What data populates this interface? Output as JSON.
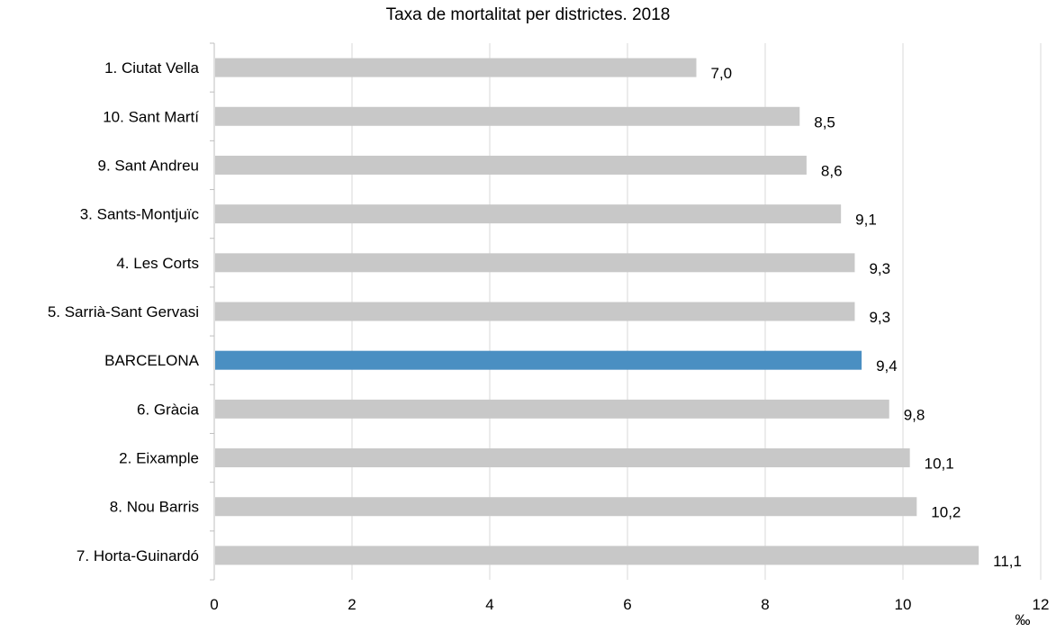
{
  "chart_data": {
    "type": "bar",
    "orientation": "horizontal",
    "title": "Taxa de mortalitat per districtes. 2018",
    "xlabel": "‰",
    "ylabel": "",
    "xlim": [
      0,
      12
    ],
    "x_ticks": [
      "0",
      "2",
      "4",
      "6",
      "8",
      "10",
      "12"
    ],
    "grid": "vertical",
    "legend": "none",
    "categories": [
      "1. Ciutat Vella",
      "10. Sant Martí",
      "9. Sant Andreu",
      "3. Sants-Montjuïc",
      "4. Les Corts",
      "5. Sarrià-Sant Gervasi",
      "BARCELONA",
      "6. Gràcia",
      "2. Eixample",
      "8. Nou Barris",
      "7. Horta-Guinardó"
    ],
    "values": [
      7.0,
      8.5,
      8.6,
      9.1,
      9.3,
      9.3,
      9.4,
      9.8,
      10.1,
      10.2,
      11.1
    ],
    "data_labels": [
      "7,0",
      "8,5",
      "8,6",
      "9,1",
      "9,3",
      "9,3",
      "9,4",
      "9,8",
      "10,1",
      "10,2",
      "11,1"
    ],
    "colors": {
      "default_bar": "#c8c8c8",
      "highlight_bar": "#4a8fc2",
      "gridline": "#d9d9d9",
      "axis": "#bfbfbf"
    },
    "highlight_category": "BARCELONA"
  }
}
